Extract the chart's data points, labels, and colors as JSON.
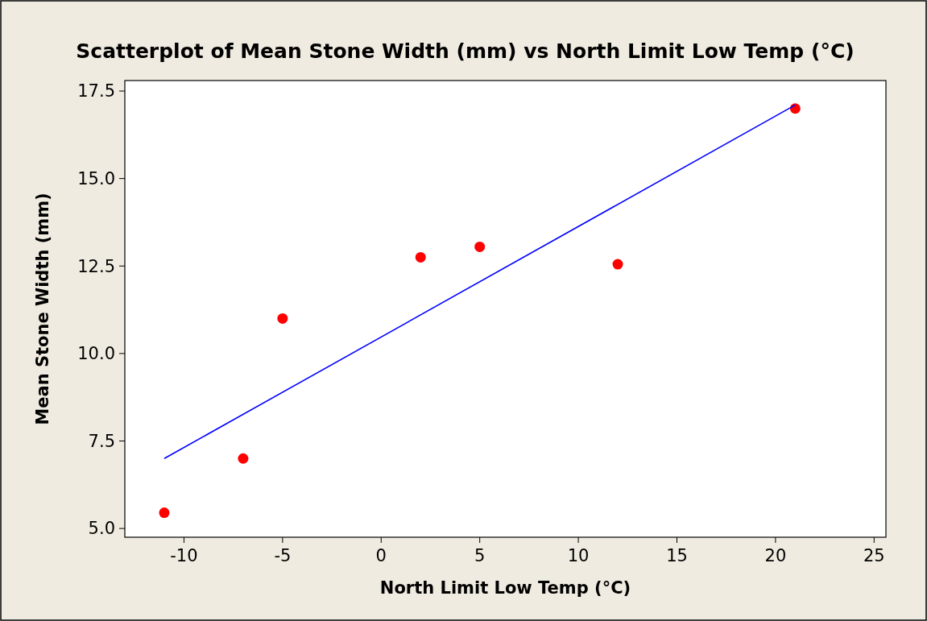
{
  "chart_data": {
    "type": "scatter",
    "title": "Scatterplot of Mean Stone Width (mm) vs North Limit Low Temp (°C)",
    "xlabel": "North Limit Low Temp (°C)",
    "ylabel": "Mean Stone Width (mm)",
    "x": [
      -11,
      -7,
      -5,
      2,
      5,
      12,
      21
    ],
    "series": [
      {
        "color": "#ff0000",
        "marker": "circle",
        "values": [
          5.45,
          7.0,
          11.0,
          12.75,
          13.05,
          12.55,
          17.0
        ]
      },
      {
        "type": "line",
        "color": "#0000ff",
        "x": [
          -11,
          21
        ],
        "values": [
          7.0,
          17.1
        ]
      }
    ],
    "xlim": [
      -13,
      25.6
    ],
    "xticks": [
      -10,
      -5,
      0,
      5,
      10,
      15,
      20,
      25
    ],
    "ylim": [
      4.75,
      17.8
    ],
    "yticks": [
      {
        "value": 5,
        "label": "5.0"
      },
      {
        "value": 7.5,
        "label": "7.5"
      },
      {
        "value": 10,
        "label": "10.0"
      },
      {
        "value": 12.5,
        "label": "12.5"
      },
      {
        "value": 15,
        "label": "15.0"
      },
      {
        "value": 17.5,
        "label": "17.5"
      }
    ],
    "grid": false
  }
}
